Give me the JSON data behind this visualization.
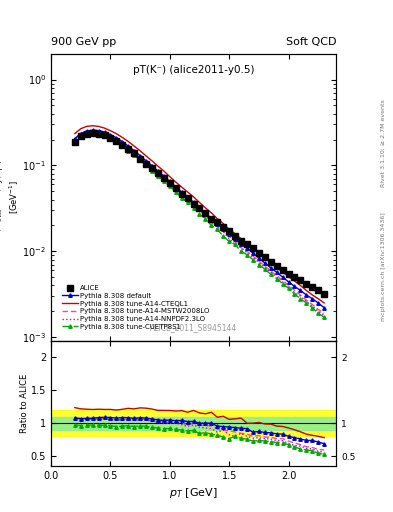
{
  "title_left": "900 GeV pp",
  "title_right": "Soft QCD",
  "plot_label": "pT(K⁻) (alice2011-y0.5)",
  "watermark": "ALICE_2011_S8945144",
  "right_label1": "Rivet 3.1.10; ≥ 2.7M events",
  "right_label2": "mcplots.cern.ch [arXiv:1306.3436]",
  "ylabel_main": "1/N_{evts} d^{2}N/dy/dp_{T} [GeV^{-1}]",
  "ylabel_ratio": "Ratio to ALICE",
  "xlabel": "p_{T} [GeV]",
  "xlim": [
    0.0,
    2.4
  ],
  "ylim_main": [
    0.0009,
    2.0
  ],
  "ylim_ratio": [
    0.35,
    2.25
  ],
  "alice_x": [
    0.2,
    0.25,
    0.3,
    0.35,
    0.4,
    0.45,
    0.5,
    0.55,
    0.6,
    0.65,
    0.7,
    0.75,
    0.8,
    0.85,
    0.9,
    0.95,
    1.0,
    1.05,
    1.1,
    1.15,
    1.2,
    1.25,
    1.3,
    1.35,
    1.4,
    1.45,
    1.5,
    1.55,
    1.6,
    1.65,
    1.7,
    1.75,
    1.8,
    1.85,
    1.9,
    1.95,
    2.0,
    2.05,
    2.1,
    2.15,
    2.2,
    2.25,
    2.3
  ],
  "alice_y": [
    0.19,
    0.22,
    0.235,
    0.24,
    0.235,
    0.225,
    0.21,
    0.195,
    0.175,
    0.155,
    0.138,
    0.12,
    0.105,
    0.093,
    0.082,
    0.072,
    0.062,
    0.054,
    0.047,
    0.042,
    0.036,
    0.032,
    0.028,
    0.024,
    0.022,
    0.019,
    0.017,
    0.015,
    0.013,
    0.012,
    0.011,
    0.0095,
    0.0085,
    0.0075,
    0.0068,
    0.006,
    0.0055,
    0.005,
    0.0046,
    0.0042,
    0.0038,
    0.0035,
    0.0032
  ],
  "default_x": [
    0.2,
    0.25,
    0.3,
    0.35,
    0.4,
    0.45,
    0.5,
    0.55,
    0.6,
    0.65,
    0.7,
    0.75,
    0.8,
    0.85,
    0.9,
    0.95,
    1.0,
    1.05,
    1.1,
    1.15,
    1.2,
    1.25,
    1.3,
    1.35,
    1.4,
    1.45,
    1.5,
    1.55,
    1.6,
    1.65,
    1.7,
    1.75,
    1.8,
    1.85,
    1.9,
    1.95,
    2.0,
    2.05,
    2.1,
    2.15,
    2.2,
    2.25,
    2.3
  ],
  "default_y": [
    0.205,
    0.235,
    0.252,
    0.258,
    0.255,
    0.245,
    0.228,
    0.21,
    0.19,
    0.168,
    0.148,
    0.13,
    0.113,
    0.099,
    0.086,
    0.075,
    0.065,
    0.056,
    0.049,
    0.043,
    0.037,
    0.032,
    0.028,
    0.024,
    0.021,
    0.018,
    0.016,
    0.014,
    0.012,
    0.011,
    0.0095,
    0.0083,
    0.0073,
    0.0064,
    0.0057,
    0.005,
    0.0044,
    0.0039,
    0.0035,
    0.0031,
    0.0028,
    0.0025,
    0.0022
  ],
  "cteq_x": [
    0.2,
    0.25,
    0.3,
    0.35,
    0.4,
    0.45,
    0.5,
    0.55,
    0.6,
    0.65,
    0.7,
    0.75,
    0.8,
    0.85,
    0.9,
    0.95,
    1.0,
    1.05,
    1.1,
    1.15,
    1.2,
    1.25,
    1.3,
    1.35,
    1.4,
    1.45,
    1.5,
    1.55,
    1.6,
    1.65,
    1.7,
    1.75,
    1.8,
    1.85,
    1.9,
    1.95,
    2.0,
    2.05,
    2.1,
    2.15,
    2.2,
    2.25,
    2.3
  ],
  "cteq_y": [
    0.235,
    0.268,
    0.285,
    0.29,
    0.285,
    0.272,
    0.254,
    0.234,
    0.212,
    0.19,
    0.168,
    0.148,
    0.129,
    0.113,
    0.098,
    0.086,
    0.074,
    0.064,
    0.056,
    0.049,
    0.043,
    0.037,
    0.032,
    0.028,
    0.024,
    0.021,
    0.018,
    0.016,
    0.014,
    0.012,
    0.011,
    0.0096,
    0.0084,
    0.0074,
    0.0065,
    0.0057,
    0.0051,
    0.0045,
    0.004,
    0.0035,
    0.0031,
    0.0028,
    0.0025
  ],
  "mstw_x": [
    0.2,
    0.25,
    0.3,
    0.35,
    0.4,
    0.45,
    0.5,
    0.55,
    0.6,
    0.65,
    0.7,
    0.75,
    0.8,
    0.85,
    0.9,
    0.95,
    1.0,
    1.05,
    1.1,
    1.15,
    1.2,
    1.25,
    1.3,
    1.35,
    1.4,
    1.45,
    1.5,
    1.55,
    1.6,
    1.65,
    1.7,
    1.75,
    1.8,
    1.85,
    1.9,
    1.95,
    2.0,
    2.05,
    2.1,
    2.15,
    2.2,
    2.25,
    2.3
  ],
  "mstw_y": [
    0.205,
    0.235,
    0.25,
    0.255,
    0.25,
    0.24,
    0.222,
    0.205,
    0.185,
    0.165,
    0.146,
    0.128,
    0.111,
    0.097,
    0.084,
    0.073,
    0.063,
    0.055,
    0.047,
    0.041,
    0.036,
    0.031,
    0.027,
    0.023,
    0.02,
    0.017,
    0.015,
    0.013,
    0.011,
    0.01,
    0.0088,
    0.0077,
    0.0067,
    0.0059,
    0.0052,
    0.0046,
    0.004,
    0.0035,
    0.0031,
    0.0027,
    0.0024,
    0.0021,
    0.0019
  ],
  "nnpdf_x": [
    0.2,
    0.25,
    0.3,
    0.35,
    0.4,
    0.45,
    0.5,
    0.55,
    0.6,
    0.65,
    0.7,
    0.75,
    0.8,
    0.85,
    0.9,
    0.95,
    1.0,
    1.05,
    1.1,
    1.15,
    1.2,
    1.25,
    1.3,
    1.35,
    1.4,
    1.45,
    1.5,
    1.55,
    1.6,
    1.65,
    1.7,
    1.75,
    1.8,
    1.85,
    1.9,
    1.95,
    2.0,
    2.05,
    2.1,
    2.15,
    2.2,
    2.25,
    2.3
  ],
  "nnpdf_y": [
    0.205,
    0.235,
    0.25,
    0.255,
    0.25,
    0.239,
    0.221,
    0.204,
    0.184,
    0.163,
    0.144,
    0.126,
    0.11,
    0.096,
    0.083,
    0.072,
    0.062,
    0.054,
    0.046,
    0.04,
    0.035,
    0.03,
    0.026,
    0.022,
    0.019,
    0.017,
    0.014,
    0.012,
    0.011,
    0.0096,
    0.0085,
    0.0074,
    0.0065,
    0.0057,
    0.005,
    0.0044,
    0.0038,
    0.0033,
    0.003,
    0.0026,
    0.0023,
    0.002,
    0.0018
  ],
  "cuetp_x": [
    0.2,
    0.25,
    0.3,
    0.35,
    0.4,
    0.45,
    0.5,
    0.55,
    0.6,
    0.65,
    0.7,
    0.75,
    0.8,
    0.85,
    0.9,
    0.95,
    1.0,
    1.05,
    1.1,
    1.15,
    1.2,
    1.25,
    1.3,
    1.35,
    1.4,
    1.45,
    1.5,
    1.55,
    1.6,
    1.65,
    1.7,
    1.75,
    1.8,
    1.85,
    1.9,
    1.95,
    2.0,
    2.05,
    2.1,
    2.15,
    2.2,
    2.25,
    2.3
  ],
  "cuetp_y": [
    0.185,
    0.212,
    0.228,
    0.233,
    0.228,
    0.218,
    0.202,
    0.185,
    0.167,
    0.149,
    0.131,
    0.115,
    0.1,
    0.087,
    0.076,
    0.066,
    0.057,
    0.049,
    0.042,
    0.037,
    0.032,
    0.027,
    0.024,
    0.02,
    0.018,
    0.015,
    0.013,
    0.012,
    0.01,
    0.0091,
    0.008,
    0.007,
    0.0062,
    0.0054,
    0.0048,
    0.0042,
    0.0037,
    0.0032,
    0.0028,
    0.0025,
    0.0022,
    0.0019,
    0.0017
  ],
  "color_alice": "#000000",
  "color_default": "#0000cc",
  "color_cteq": "#cc0000",
  "color_mstw": "#ff44aa",
  "color_nnpdf": "#cc00cc",
  "color_cuetp": "#00aa00",
  "band_yellow": [
    0.8,
    1.2
  ],
  "band_green": [
    0.9,
    1.1
  ]
}
